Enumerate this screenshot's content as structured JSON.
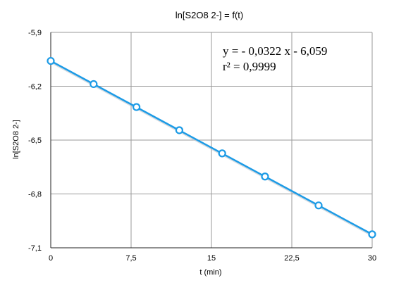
{
  "chart_data": {
    "type": "scatter",
    "title": "ln[S2O8 2-] = f(t)",
    "xlabel": "t (min)",
    "ylabel": "ln[S2O8 2-]",
    "xlim": [
      0,
      30
    ],
    "ylim": [
      -7.1,
      -5.9
    ],
    "x_ticks": [
      0,
      7.5,
      15,
      22.5,
      30
    ],
    "x_tick_labels": [
      "0",
      "7,5",
      "15",
      "22,5",
      "30"
    ],
    "y_ticks": [
      -5.9,
      -6.2,
      -6.5,
      -6.8,
      -7.1
    ],
    "y_tick_labels": [
      "-5,9",
      "-6,2",
      "-6,5",
      "-6,8",
      "-7,1"
    ],
    "grid": true,
    "series": [
      {
        "x": [
          0,
          4,
          8,
          12,
          16,
          20,
          25,
          30
        ],
        "y": [
          -6.059,
          -6.188,
          -6.316,
          -6.445,
          -6.574,
          -6.703,
          -6.864,
          -7.025
        ]
      }
    ],
    "trendline": {
      "slope": -0.0322,
      "intercept": -6.059,
      "equation_label": "y = - 0,0322 x - 6,059",
      "r2_label": "r² = 0,9999"
    },
    "colors": {
      "series": "#1c9be6",
      "trendline": "#1c9be6",
      "grid": "#9a9a9a",
      "axis": "#222222"
    }
  }
}
